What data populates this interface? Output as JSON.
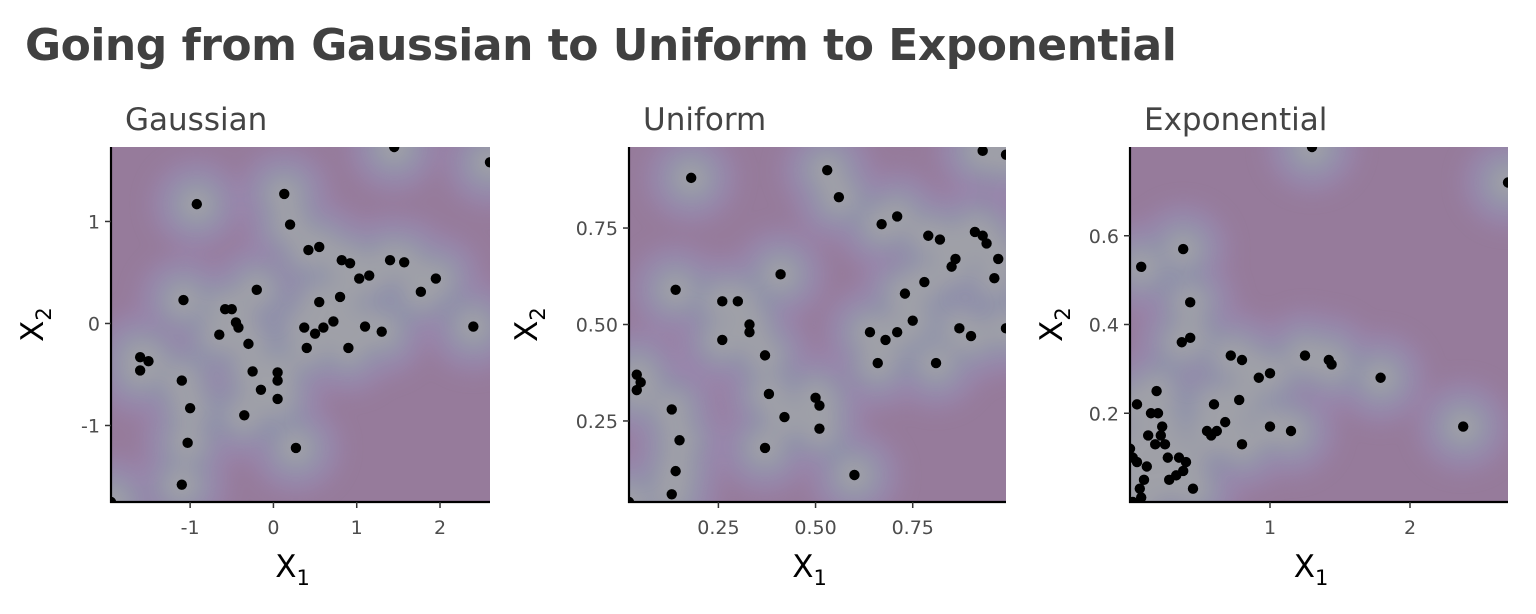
{
  "title": "Going from Gaussian to Uniform to Exponential",
  "chart_data": [
    {
      "type": "scatter",
      "title": "Gaussian",
      "xlabel": "X",
      "xlabel_sub": "1",
      "ylabel": "X",
      "ylabel_sub": "2",
      "xlim": [
        -1.95,
        2.6
      ],
      "ylim": [
        -1.75,
        1.73
      ],
      "xticks": [
        -1,
        0,
        1,
        2
      ],
      "xticklabels": [
        "-1",
        "0",
        "1",
        "2"
      ],
      "yticks": [
        -1,
        0,
        1
      ],
      "yticklabels": [
        "-1",
        "0",
        "1"
      ],
      "density_overlay": true,
      "colors": {
        "background": "#967b9b",
        "low": "#9b8eb8",
        "mid": "#6ebbaa",
        "high": "#fbf29c",
        "point": "#000000"
      },
      "points": [
        [
          1.45,
          1.73
        ],
        [
          2.6,
          1.58
        ],
        [
          0.13,
          1.27
        ],
        [
          -0.92,
          1.17
        ],
        [
          0.2,
          0.97
        ],
        [
          0.55,
          0.75
        ],
        [
          0.42,
          0.72
        ],
        [
          0.82,
          0.62
        ],
        [
          0.92,
          0.59
        ],
        [
          1.4,
          0.62
        ],
        [
          1.57,
          0.6
        ],
        [
          1.15,
          0.47
        ],
        [
          1.03,
          0.44
        ],
        [
          1.95,
          0.44
        ],
        [
          1.77,
          0.31
        ],
        [
          -0.2,
          0.33
        ],
        [
          -1.08,
          0.23
        ],
        [
          -0.58,
          0.14
        ],
        [
          -0.5,
          0.14
        ],
        [
          0.55,
          0.21
        ],
        [
          0.8,
          0.26
        ],
        [
          -0.45,
          0.01
        ],
        [
          -0.42,
          -0.04
        ],
        [
          -0.65,
          -0.11
        ],
        [
          0.37,
          -0.04
        ],
        [
          0.72,
          0.02
        ],
        [
          0.6,
          -0.04
        ],
        [
          0.5,
          -0.1
        ],
        [
          1.1,
          -0.03
        ],
        [
          1.3,
          -0.08
        ],
        [
          2.4,
          -0.03
        ],
        [
          0.4,
          -0.24
        ],
        [
          0.9,
          -0.24
        ],
        [
          -0.3,
          -0.2
        ],
        [
          -1.6,
          -0.33
        ],
        [
          -1.5,
          -0.37
        ],
        [
          -1.6,
          -0.46
        ],
        [
          -0.25,
          -0.47
        ],
        [
          0.05,
          -0.48
        ],
        [
          0.05,
          -0.56
        ],
        [
          -1.1,
          -0.56
        ],
        [
          -0.15,
          -0.65
        ],
        [
          0.05,
          -0.74
        ],
        [
          -0.35,
          -0.9
        ],
        [
          -1.0,
          -0.83
        ],
        [
          -1.03,
          -1.17
        ],
        [
          0.27,
          -1.22
        ],
        [
          -1.1,
          -1.58
        ],
        [
          -1.95,
          -1.75
        ]
      ]
    },
    {
      "type": "scatter",
      "title": "Uniform",
      "xlabel": "X",
      "xlabel_sub": "1",
      "ylabel": "X",
      "ylabel_sub": "2",
      "xlim": [
        0.02,
        0.99
      ],
      "ylim": [
        0.04,
        0.96
      ],
      "xticks": [
        0.25,
        0.5,
        0.75
      ],
      "xticklabels": [
        "0.25",
        "0.50",
        "0.75"
      ],
      "yticks": [
        0.25,
        0.5,
        0.75
      ],
      "yticklabels": [
        "0.25",
        "0.50",
        "0.75"
      ],
      "density_overlay": true,
      "colors": {
        "background": "#967b9b",
        "low": "#9b8eb8",
        "mid": "#6ebbaa",
        "high": "#fbf29c",
        "point": "#000000"
      },
      "points": [
        [
          0.18,
          0.88
        ],
        [
          0.53,
          0.9
        ],
        [
          0.56,
          0.83
        ],
        [
          0.93,
          0.95
        ],
        [
          0.99,
          0.94
        ],
        [
          0.71,
          0.78
        ],
        [
          0.67,
          0.76
        ],
        [
          0.79,
          0.73
        ],
        [
          0.82,
          0.72
        ],
        [
          0.91,
          0.74
        ],
        [
          0.93,
          0.73
        ],
        [
          0.94,
          0.71
        ],
        [
          0.97,
          0.67
        ],
        [
          0.86,
          0.67
        ],
        [
          0.85,
          0.65
        ],
        [
          0.41,
          0.63
        ],
        [
          0.96,
          0.62
        ],
        [
          0.78,
          0.61
        ],
        [
          0.14,
          0.59
        ],
        [
          0.73,
          0.58
        ],
        [
          0.26,
          0.56
        ],
        [
          0.3,
          0.56
        ],
        [
          0.75,
          0.51
        ],
        [
          0.33,
          0.5
        ],
        [
          0.33,
          0.48
        ],
        [
          0.71,
          0.48
        ],
        [
          0.64,
          0.48
        ],
        [
          0.87,
          0.49
        ],
        [
          0.99,
          0.49
        ],
        [
          0.9,
          0.47
        ],
        [
          0.68,
          0.46
        ],
        [
          0.26,
          0.46
        ],
        [
          0.37,
          0.42
        ],
        [
          0.66,
          0.4
        ],
        [
          0.81,
          0.4
        ],
        [
          0.04,
          0.37
        ],
        [
          0.05,
          0.35
        ],
        [
          0.04,
          0.33
        ],
        [
          0.38,
          0.32
        ],
        [
          0.5,
          0.31
        ],
        [
          0.51,
          0.29
        ],
        [
          0.13,
          0.28
        ],
        [
          0.42,
          0.26
        ],
        [
          0.51,
          0.23
        ],
        [
          0.15,
          0.2
        ],
        [
          0.37,
          0.18
        ],
        [
          0.14,
          0.12
        ],
        [
          0.6,
          0.11
        ],
        [
          0.13,
          0.06
        ],
        [
          0.02,
          0.04
        ]
      ]
    },
    {
      "type": "scatter",
      "title": "Exponential",
      "xlabel": "X",
      "xlabel_sub": "1",
      "ylabel": "X",
      "ylabel_sub": "2",
      "xlim": [
        0.0,
        2.7
      ],
      "ylim": [
        0.0,
        0.8
      ],
      "xticks": [
        1,
        2
      ],
      "xticklabels": [
        "1",
        "2"
      ],
      "yticks": [
        0.2,
        0.4,
        0.6
      ],
      "yticklabels": [
        "0.2",
        "0.4",
        "0.6"
      ],
      "density_overlay": true,
      "colors": {
        "background": "#967b9b",
        "low": "#9b8eb8",
        "mid": "#6ebbaa",
        "high": "#fbf29c",
        "point": "#000000"
      },
      "points": [
        [
          1.3,
          0.8
        ],
        [
          2.7,
          0.72
        ],
        [
          0.38,
          0.57
        ],
        [
          0.08,
          0.53
        ],
        [
          0.43,
          0.45
        ],
        [
          0.43,
          0.37
        ],
        [
          0.37,
          0.36
        ],
        [
          0.72,
          0.33
        ],
        [
          0.8,
          0.32
        ],
        [
          1.25,
          0.33
        ],
        [
          1.42,
          0.32
        ],
        [
          1.44,
          0.31
        ],
        [
          1.0,
          0.29
        ],
        [
          0.92,
          0.28
        ],
        [
          1.79,
          0.28
        ],
        [
          0.19,
          0.25
        ],
        [
          0.78,
          0.23
        ],
        [
          0.05,
          0.22
        ],
        [
          0.6,
          0.22
        ],
        [
          0.15,
          0.2
        ],
        [
          0.2,
          0.2
        ],
        [
          0.68,
          0.18
        ],
        [
          0.23,
          0.17
        ],
        [
          0.55,
          0.16
        ],
        [
          0.62,
          0.16
        ],
        [
          1.0,
          0.17
        ],
        [
          1.15,
          0.16
        ],
        [
          2.38,
          0.17
        ],
        [
          0.22,
          0.15
        ],
        [
          0.13,
          0.15
        ],
        [
          0.58,
          0.15
        ],
        [
          0.18,
          0.13
        ],
        [
          0.8,
          0.13
        ],
        [
          0.0,
          0.12
        ],
        [
          0.25,
          0.13
        ],
        [
          0.02,
          0.1
        ],
        [
          0.35,
          0.1
        ],
        [
          0.27,
          0.1
        ],
        [
          0.05,
          0.09
        ],
        [
          0.4,
          0.09
        ],
        [
          0.12,
          0.08
        ],
        [
          0.38,
          0.07
        ],
        [
          0.33,
          0.06
        ],
        [
          0.1,
          0.05
        ],
        [
          0.28,
          0.05
        ],
        [
          0.07,
          0.03
        ],
        [
          0.45,
          0.03
        ],
        [
          0.08,
          0.01
        ],
        [
          0.02,
          0.0
        ]
      ]
    }
  ]
}
